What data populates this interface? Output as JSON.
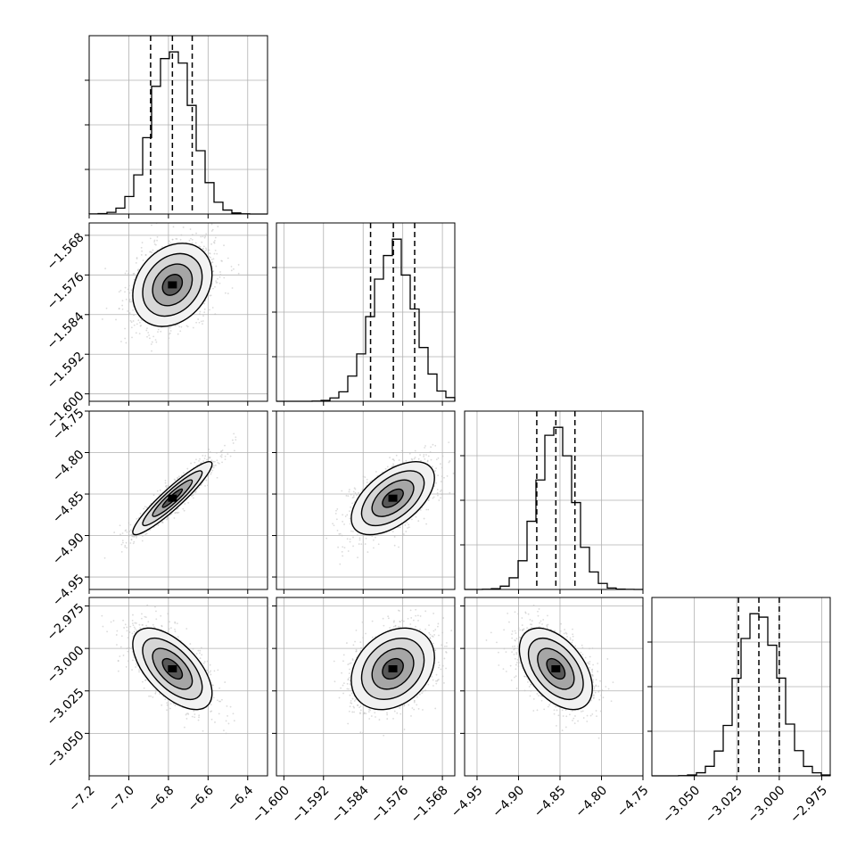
{
  "chart_data": {
    "type": "corner",
    "parameters": 4,
    "axes": [
      {
        "ticks": [
          "−7.2",
          "−7.0",
          "−6.8",
          "−6.6",
          "−6.4"
        ],
        "tick_values": [
          -7.2,
          -7.0,
          -6.8,
          -6.6,
          -6.4
        ],
        "lim": [
          -7.2,
          -6.3
        ]
      },
      {
        "ticks": [
          "−1.600",
          "−1.592",
          "−1.584",
          "−1.576",
          "−1.568"
        ],
        "tick_values": [
          -1.6,
          -1.592,
          -1.584,
          -1.576,
          -1.568
        ],
        "lim": [
          -1.6015,
          -1.5655
        ]
      },
      {
        "ticks": [
          "−4.95",
          "−4.90",
          "−4.85",
          "−4.80",
          "−4.75"
        ],
        "tick_values": [
          -4.95,
          -4.9,
          -4.85,
          -4.8,
          -4.75
        ],
        "lim": [
          -4.965,
          -4.75
        ]
      },
      {
        "ticks": [
          "−3.050",
          "−3.025",
          "−3.000",
          "−2.975"
        ],
        "tick_values": [
          -3.05,
          -3.025,
          -3.0,
          -2.975
        ],
        "lim": [
          -3.075,
          -2.97
        ]
      }
    ],
    "diagonals": [
      {
        "quantiles": [
          -6.89,
          -6.78,
          -6.68
        ],
        "mean": -6.78,
        "std": 0.1
      },
      {
        "quantiles": [
          -1.5825,
          -1.5779,
          -1.5736
        ],
        "mean": -1.578,
        "std": 0.0042
      },
      {
        "quantiles": [
          -4.878,
          -4.855,
          -4.832
        ],
        "mean": -4.855,
        "std": 0.022
      },
      {
        "quantiles": [
          -3.024,
          -3.012,
          -3.0
        ],
        "mean": -3.012,
        "std": 0.012
      }
    ],
    "pairs": [
      {
        "row": 1,
        "col": 0,
        "rho": 0.25
      },
      {
        "row": 2,
        "col": 0,
        "rho": 0.93
      },
      {
        "row": 2,
        "col": 1,
        "rho": 0.55
      },
      {
        "row": 3,
        "col": 0,
        "rho": -0.6
      },
      {
        "row": 3,
        "col": 1,
        "rho": 0.28
      },
      {
        "row": 3,
        "col": 2,
        "rho": -0.48
      }
    ],
    "grid": true,
    "colors": {
      "line": "#000000",
      "grid": "#b0b0b0",
      "points": "#bdbdbd"
    }
  }
}
